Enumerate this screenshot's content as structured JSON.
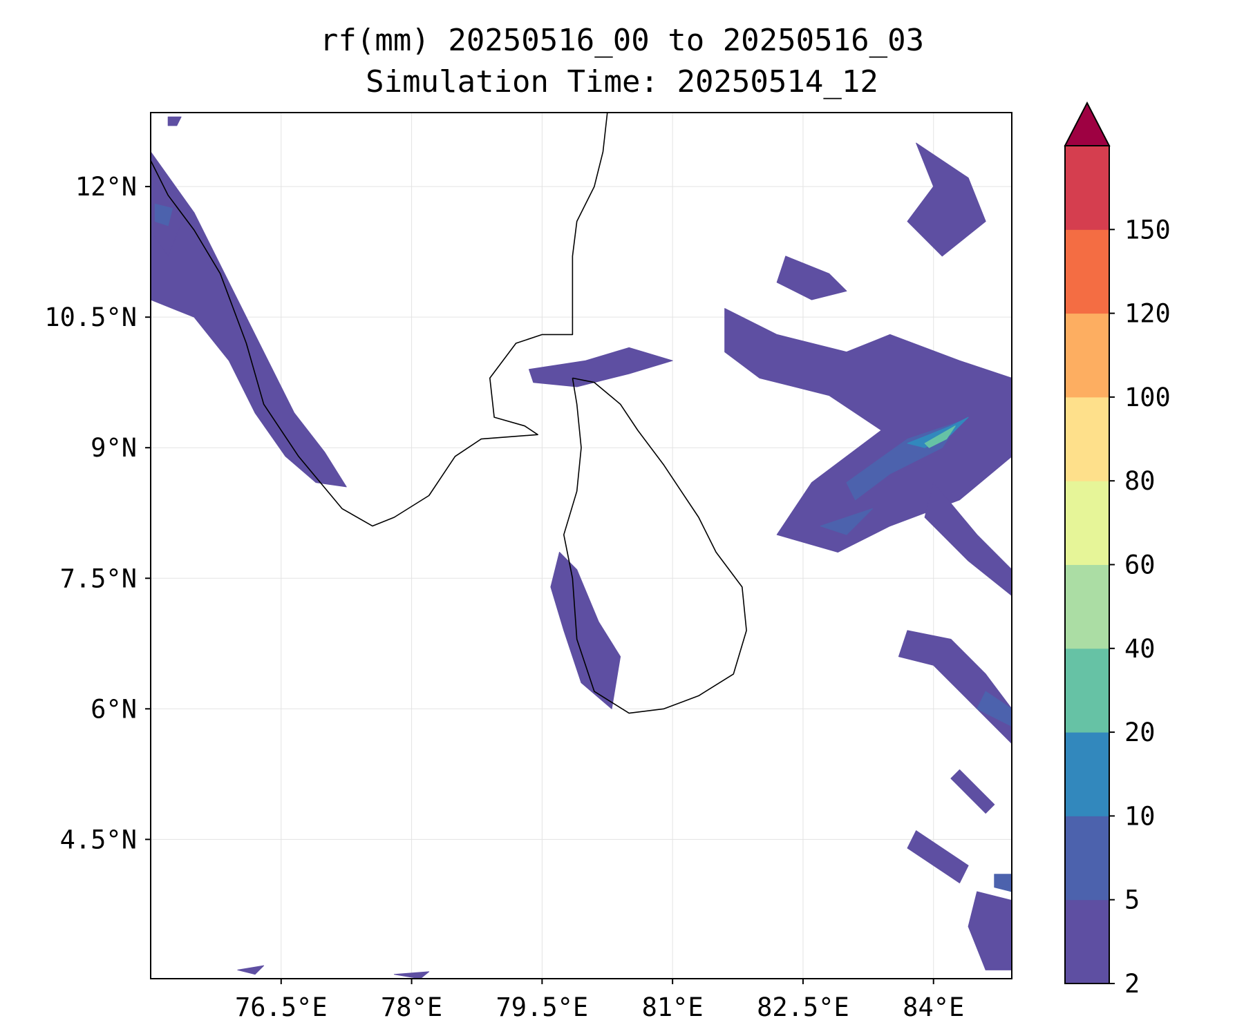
{
  "title": {
    "line1": "rf(mm) 20250516_00 to 20250516_03",
    "line2": "Simulation Time: 20250514_12"
  },
  "map": {
    "lon_range": [
      75.0,
      84.9
    ],
    "lat_range": [
      2.9,
      12.85
    ],
    "x_ticks": [
      {
        "value": 76.5,
        "label": "76.5°E"
      },
      {
        "value": 78.0,
        "label": "78°E"
      },
      {
        "value": 79.5,
        "label": "79.5°E"
      },
      {
        "value": 81.0,
        "label": "81°E"
      },
      {
        "value": 82.5,
        "label": "82.5°E"
      },
      {
        "value": 84.0,
        "label": "84°E"
      }
    ],
    "y_ticks": [
      {
        "value": 12.0,
        "label": "12°N"
      },
      {
        "value": 10.5,
        "label": "10.5°N"
      },
      {
        "value": 9.0,
        "label": "9°N"
      },
      {
        "value": 7.5,
        "label": "7.5°N"
      },
      {
        "value": 6.0,
        "label": "6°N"
      },
      {
        "value": 4.5,
        "label": "4.5°N"
      }
    ],
    "gridlines": true
  },
  "colorbar": {
    "levels": [
      2,
      5,
      10,
      20,
      40,
      60,
      80,
      100,
      120,
      150
    ],
    "labels": [
      "2",
      "5",
      "10",
      "20",
      "40",
      "60",
      "80",
      "100",
      "120",
      "150"
    ],
    "colors": [
      "#5e4fa2",
      "#4c62ad",
      "#3288bd",
      "#66c2a5",
      "#abdda4",
      "#e6f598",
      "#fee08b",
      "#fdae61",
      "#f46d43",
      "#d53e4f"
    ],
    "extend_max_color": "#9e0142",
    "extend": "max"
  },
  "coastlines": {
    "india": [
      [
        80.25,
        12.85
      ],
      [
        80.2,
        12.4
      ],
      [
        80.1,
        12.0
      ],
      [
        79.9,
        11.6
      ],
      [
        79.85,
        11.2
      ],
      [
        79.85,
        10.8
      ],
      [
        79.85,
        10.3
      ],
      [
        79.5,
        10.3
      ],
      [
        79.2,
        10.2
      ],
      [
        78.9,
        9.8
      ],
      [
        78.95,
        9.35
      ],
      [
        79.3,
        9.25
      ],
      [
        79.45,
        9.15
      ],
      [
        78.8,
        9.1
      ],
      [
        78.5,
        8.9
      ],
      [
        78.2,
        8.45
      ],
      [
        77.8,
        8.2
      ],
      [
        77.55,
        8.1
      ],
      [
        77.2,
        8.3
      ],
      [
        76.7,
        8.9
      ],
      [
        76.3,
        9.5
      ],
      [
        76.1,
        10.2
      ],
      [
        75.8,
        11.0
      ],
      [
        75.5,
        11.5
      ],
      [
        75.2,
        11.9
      ],
      [
        75.0,
        12.3
      ]
    ],
    "sri_lanka": [
      [
        79.85,
        9.8
      ],
      [
        80.1,
        9.75
      ],
      [
        80.4,
        9.5
      ],
      [
        80.6,
        9.2
      ],
      [
        80.9,
        8.8
      ],
      [
        81.1,
        8.5
      ],
      [
        81.3,
        8.2
      ],
      [
        81.5,
        7.8
      ],
      [
        81.8,
        7.4
      ],
      [
        81.85,
        6.9
      ],
      [
        81.7,
        6.4
      ],
      [
        81.3,
        6.15
      ],
      [
        80.9,
        6.0
      ],
      [
        80.5,
        5.95
      ],
      [
        80.1,
        6.2
      ],
      [
        79.9,
        6.8
      ],
      [
        79.85,
        7.5
      ],
      [
        79.75,
        8.0
      ],
      [
        79.9,
        8.5
      ],
      [
        79.95,
        9.0
      ],
      [
        79.9,
        9.5
      ],
      [
        79.85,
        9.8
      ]
    ]
  },
  "rainfall_patches": [
    {
      "bin": 0,
      "pts": [
        [
          75.0,
          12.4
        ],
        [
          75.5,
          11.7
        ],
        [
          75.9,
          10.9
        ],
        [
          76.3,
          10.1
        ],
        [
          76.65,
          9.4
        ],
        [
          77.0,
          8.95
        ],
        [
          77.25,
          8.55
        ],
        [
          76.9,
          8.6
        ],
        [
          76.55,
          8.9
        ],
        [
          76.2,
          9.4
        ],
        [
          75.9,
          10.0
        ],
        [
          75.5,
          10.5
        ],
        [
          75.0,
          10.7
        ]
      ]
    },
    {
      "bin": 0,
      "pts": [
        [
          75.0,
          12.1
        ],
        [
          75.4,
          11.7
        ],
        [
          75.2,
          11.2
        ],
        [
          75.0,
          11.5
        ]
      ]
    },
    {
      "bin": 1,
      "pts": [
        [
          75.05,
          11.8
        ],
        [
          75.25,
          11.75
        ],
        [
          75.2,
          11.55
        ],
        [
          75.05,
          11.6
        ]
      ]
    },
    {
      "bin": 0,
      "pts": [
        [
          75.2,
          12.8
        ],
        [
          75.35,
          12.8
        ],
        [
          75.3,
          12.7
        ],
        [
          75.2,
          12.7
        ]
      ]
    },
    {
      "bin": 0,
      "pts": [
        [
          79.7,
          7.8
        ],
        [
          79.9,
          7.6
        ],
        [
          80.15,
          7.0
        ],
        [
          80.4,
          6.6
        ],
        [
          80.3,
          6.0
        ],
        [
          79.95,
          6.3
        ],
        [
          79.75,
          6.9
        ],
        [
          79.6,
          7.4
        ]
      ]
    },
    {
      "bin": 0,
      "pts": [
        [
          79.35,
          9.9
        ],
        [
          80.0,
          10.0
        ],
        [
          80.5,
          10.15
        ],
        [
          81.0,
          10.0
        ],
        [
          80.5,
          9.85
        ],
        [
          79.9,
          9.7
        ],
        [
          79.4,
          9.75
        ]
      ]
    },
    {
      "bin": 0,
      "pts": [
        [
          81.6,
          10.6
        ],
        [
          82.2,
          10.3
        ],
        [
          83.0,
          10.1
        ],
        [
          83.5,
          10.3
        ],
        [
          84.3,
          10.0
        ],
        [
          84.9,
          9.8
        ],
        [
          84.9,
          8.9
        ],
        [
          84.3,
          8.4
        ],
        [
          83.5,
          8.1
        ],
        [
          82.9,
          7.8
        ],
        [
          82.2,
          8.0
        ],
        [
          82.6,
          8.6
        ],
        [
          83.4,
          9.2
        ],
        [
          82.8,
          9.6
        ],
        [
          82.0,
          9.8
        ],
        [
          81.6,
          10.1
        ]
      ]
    },
    {
      "bin": 0,
      "pts": [
        [
          84.0,
          8.6
        ],
        [
          84.5,
          8.0
        ],
        [
          84.9,
          7.6
        ],
        [
          84.9,
          7.3
        ],
        [
          84.4,
          7.7
        ],
        [
          83.9,
          8.2
        ]
      ]
    },
    {
      "bin": 0,
      "pts": [
        [
          83.7,
          6.9
        ],
        [
          84.2,
          6.8
        ],
        [
          84.6,
          6.4
        ],
        [
          84.9,
          6.0
        ],
        [
          84.9,
          5.6
        ],
        [
          84.5,
          6.0
        ],
        [
          84.0,
          6.5
        ],
        [
          83.6,
          6.6
        ]
      ]
    },
    {
      "bin": 0,
      "pts": [
        [
          83.8,
          12.5
        ],
        [
          84.4,
          12.1
        ],
        [
          84.6,
          11.6
        ],
        [
          84.1,
          11.2
        ],
        [
          83.7,
          11.6
        ],
        [
          84.0,
          12.0
        ]
      ]
    },
    {
      "bin": 0,
      "pts": [
        [
          82.3,
          11.2
        ],
        [
          82.8,
          11.0
        ],
        [
          83.0,
          10.8
        ],
        [
          82.6,
          10.7
        ],
        [
          82.2,
          10.9
        ]
      ]
    },
    {
      "bin": 0,
      "pts": [
        [
          83.8,
          4.6
        ],
        [
          84.4,
          4.2
        ],
        [
          84.3,
          4.0
        ],
        [
          83.7,
          4.4
        ]
      ]
    },
    {
      "bin": 0,
      "pts": [
        [
          84.5,
          3.9
        ],
        [
          84.9,
          3.8
        ],
        [
          84.9,
          3.0
        ],
        [
          84.6,
          3.0
        ],
        [
          84.4,
          3.5
        ]
      ]
    },
    {
      "bin": 0,
      "pts": [
        [
          84.3,
          5.3
        ],
        [
          84.7,
          4.9
        ],
        [
          84.6,
          4.8
        ],
        [
          84.2,
          5.2
        ]
      ]
    },
    {
      "bin": 0,
      "pts": [
        [
          76.0,
          3.0
        ],
        [
          76.3,
          3.05
        ],
        [
          76.2,
          2.95
        ]
      ]
    },
    {
      "bin": 0,
      "pts": [
        [
          77.8,
          2.95
        ],
        [
          78.2,
          2.98
        ],
        [
          78.1,
          2.9
        ]
      ]
    },
    {
      "bin": 1,
      "pts": [
        [
          83.0,
          8.6
        ],
        [
          83.7,
          9.1
        ],
        [
          84.3,
          9.3
        ],
        [
          84.1,
          9.0
        ],
        [
          83.5,
          8.7
        ],
        [
          83.1,
          8.4
        ]
      ]
    },
    {
      "bin": 1,
      "pts": [
        [
          82.7,
          8.1
        ],
        [
          83.3,
          8.3
        ],
        [
          83.0,
          8.0
        ]
      ]
    },
    {
      "bin": 1,
      "pts": [
        [
          84.6,
          6.2
        ],
        [
          84.9,
          6.0
        ],
        [
          84.9,
          5.8
        ],
        [
          84.5,
          6.0
        ]
      ]
    },
    {
      "bin": 2,
      "pts": [
        [
          83.7,
          9.05
        ],
        [
          84.2,
          9.25
        ],
        [
          84.4,
          9.35
        ],
        [
          84.2,
          9.15
        ],
        [
          83.9,
          9.0
        ]
      ]
    },
    {
      "bin": 3,
      "pts": [
        [
          83.9,
          9.05
        ],
        [
          84.25,
          9.25
        ],
        [
          84.15,
          9.1
        ],
        [
          83.95,
          9.0
        ]
      ]
    },
    {
      "bin": 1,
      "pts": [
        [
          84.7,
          4.1
        ],
        [
          84.9,
          4.1
        ],
        [
          84.9,
          3.9
        ],
        [
          84.7,
          3.95
        ]
      ]
    }
  ]
}
